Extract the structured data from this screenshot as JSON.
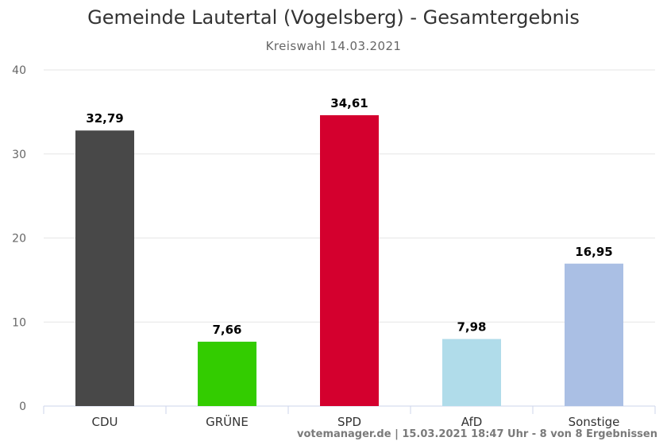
{
  "chart_data": {
    "type": "bar",
    "title": "Gemeinde Lautertal (Vogelsberg) - Gesamtergebnis",
    "subtitle": "Kreiswahl 14.03.2021",
    "categories": [
      "CDU",
      "GRÜNE",
      "SPD",
      "AfD",
      "Sonstige"
    ],
    "values": [
      32.79,
      7.66,
      34.61,
      7.98,
      16.95
    ],
    "value_labels": [
      "32,79",
      "7,66",
      "34,61",
      "7,98",
      "16,95"
    ],
    "colors": [
      "#484848",
      "#33cc00",
      "#d4002e",
      "#b0dcea",
      "#aabfe4"
    ],
    "ylim": [
      0,
      40
    ],
    "yticks": [
      0,
      10,
      20,
      30,
      40
    ],
    "grid": true,
    "legend": "none"
  },
  "credits": "votemanager.de | 15.03.2021 18:47 Uhr - 8 von 8 Ergebnissen"
}
